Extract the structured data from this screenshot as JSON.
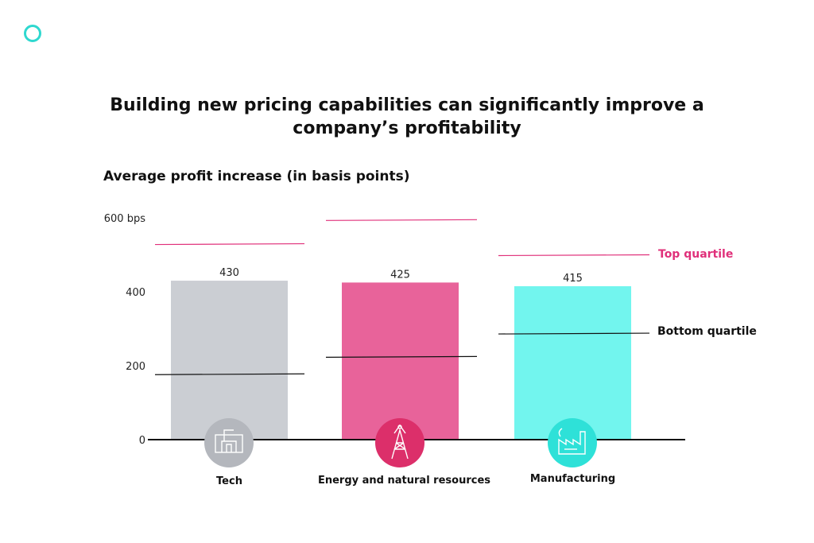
{
  "header": {
    "title_line1": "Building new pricing capabilities can significantly improve a",
    "title_line2": "company’s profitability",
    "subtitle": "Average profit increase (in basis points)"
  },
  "legend": {
    "top_quartile": "Top quartile",
    "bottom_quartile": "Bottom quartile"
  },
  "colors": {
    "brand_ring": "#2fd8cf",
    "top_line": "#e0307a",
    "bottom_line": "#111111"
  },
  "chart_data": {
    "type": "bar",
    "title": "Building new pricing capabilities can significantly improve a company’s profitability",
    "ylabel": "Average profit increase (in basis points)",
    "ylim": [
      0,
      600
    ],
    "yticks": [
      {
        "value": 0,
        "label": "0"
      },
      {
        "value": 200,
        "label": "200"
      },
      {
        "value": 400,
        "label": "400"
      },
      {
        "value": 600,
        "label": "600 bps"
      }
    ],
    "categories": [
      "Tech",
      "Energy and natural resources",
      "Manufacturing"
    ],
    "values": [
      430,
      425,
      415
    ],
    "value_labels": [
      "430",
      "425",
      "415"
    ],
    "bar_colors": [
      "#cbced3",
      "#e8639a",
      "#72f5ee"
    ],
    "icon_colors": [
      "#b4b7bd",
      "#dc2f6a",
      "#2ee1d8"
    ],
    "icons": [
      "tech-icon",
      "energy-tower-icon",
      "factory-icon"
    ],
    "top_quartile": [
      530,
      595,
      500
    ],
    "bottom_quartile": [
      178,
      225,
      288
    ]
  }
}
